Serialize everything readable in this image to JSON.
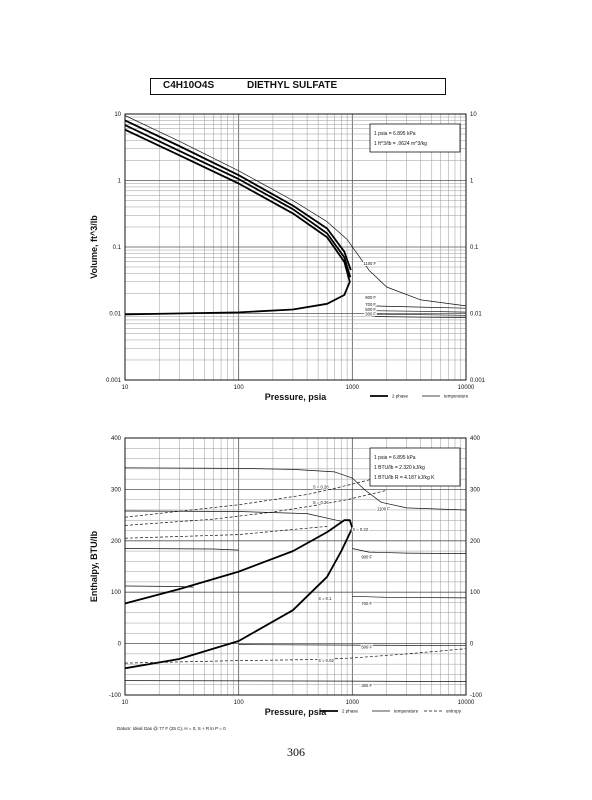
{
  "header": {
    "formula": "C4H10O4S",
    "name": "DIETHYL SULFATE"
  },
  "page_number": "306",
  "chart_data": [
    {
      "type": "line",
      "xlabel": "Pressure,  psia",
      "ylabel": "Volume,  ft^3/lb",
      "x_scale": "log",
      "y_scale": "log",
      "xlim": [
        10,
        10000
      ],
      "ylim": [
        0.001,
        10
      ],
      "x_ticks": [
        "10",
        "100",
        "1000",
        "10000"
      ],
      "y_ticks": [
        "10",
        "1",
        "0.1",
        "0.01",
        "0.001"
      ],
      "y_ticks_right": [
        "10",
        "1",
        "0.1",
        "0.01",
        "0.001"
      ],
      "grid": true,
      "conversion_box": [
        "1 psia  =  6.895 kPa",
        "1 ft^3/lb  =  .0624 m^3/kg"
      ],
      "legend": {
        "position": "bottom-right",
        "entries": [
          "2 phase",
          "temperature"
        ]
      },
      "series": [
        {
          "style": "2 phase",
          "points": [
            [
              10,
              5.8
            ],
            [
              30,
              2.4
            ],
            [
              100,
              0.9
            ],
            [
              300,
              0.32
            ],
            [
              600,
              0.14
            ],
            [
              850,
              0.06
            ],
            [
              950,
              0.03
            ],
            [
              850,
              0.019
            ],
            [
              600,
              0.014
            ],
            [
              300,
              0.0115
            ],
            [
              100,
              0.0104
            ],
            [
              10,
              0.0097
            ]
          ]
        },
        {
          "style": "2 phase",
          "points": [
            [
              10,
              6.8
            ],
            [
              30,
              2.8
            ],
            [
              100,
              1.05
            ],
            [
              300,
              0.37
            ],
            [
              600,
              0.16
            ],
            [
              850,
              0.07
            ],
            [
              960,
              0.035
            ]
          ]
        },
        {
          "style": "2 phase",
          "points": [
            [
              10,
              8.0
            ],
            [
              30,
              3.3
            ],
            [
              100,
              1.2
            ],
            [
              300,
              0.42
            ],
            [
              600,
              0.19
            ],
            [
              850,
              0.085
            ],
            [
              970,
              0.045
            ]
          ]
        },
        {
          "style": "temperature",
          "points": [
            [
              10,
              9.5
            ],
            [
              30,
              3.9
            ],
            [
              100,
              1.4
            ],
            [
              300,
              0.5
            ],
            [
              600,
              0.24
            ],
            [
              900,
              0.13
            ],
            [
              1100,
              0.08
            ],
            [
              1400,
              0.045
            ],
            [
              2000,
              0.025
            ],
            [
              4000,
              0.016
            ],
            [
              10000,
              0.013
            ]
          ]
        },
        {
          "style": "temperature",
          "points": [
            [
              1500,
              0.013
            ],
            [
              4000,
              0.0125
            ],
            [
              10000,
              0.012
            ]
          ]
        },
        {
          "style": "temperature",
          "points": [
            [
              1500,
              0.011
            ],
            [
              4000,
              0.0108
            ],
            [
              10000,
              0.0105
            ]
          ]
        },
        {
          "style": "temperature",
          "points": [
            [
              1500,
              0.0098
            ],
            [
              4000,
              0.0096
            ],
            [
              10000,
              0.0094
            ]
          ]
        },
        {
          "style": "temperature",
          "points": [
            [
              1500,
              0.009
            ],
            [
              4000,
              0.0088
            ],
            [
              10000,
              0.0087
            ]
          ]
        }
      ],
      "annotations": [
        {
          "text": "1100 F",
          "x": 1250,
          "y": 0.056
        },
        {
          "text": "900 F",
          "x": 1300,
          "y": 0.0175
        },
        {
          "text": "700 F",
          "x": 1300,
          "y": 0.0137
        },
        {
          "text": "500 F",
          "x": 1300,
          "y": 0.0115
        },
        {
          "text": "300 F",
          "x": 1300,
          "y": 0.0098
        }
      ]
    },
    {
      "type": "line",
      "xlabel": "Pressure,  psia",
      "ylabel": "Enthalpy,  BTU/lb",
      "x_scale": "log",
      "xlim": [
        10,
        10000
      ],
      "ylim": [
        -100,
        400
      ],
      "x_ticks": [
        "10",
        "100",
        "1000",
        "10000"
      ],
      "y_ticks": [
        "400",
        "300",
        "200",
        "100",
        "0",
        "-100"
      ],
      "y_ticks_right": [
        "400",
        "300",
        "200",
        "100",
        "0",
        "-100"
      ],
      "grid": true,
      "conversion_box": [
        "1 psia  =  6.895 kPa",
        "1 BTU/lb  =  2.320 kJ/kg",
        "1 BTU/lb R  =  4.187 kJ/kg K"
      ],
      "footnote": "Datum: Ideal Gas @ 77 F (25 C),  H = 0,  S + R ln P = 0",
      "legend": {
        "position": "bottom-right",
        "entries": [
          "2 phase",
          "temperature",
          "entropy"
        ]
      },
      "series": [
        {
          "style": "2 phase",
          "points": [
            [
              10,
              78
            ],
            [
              30,
              106
            ],
            [
              100,
              140
            ],
            [
              300,
              180
            ],
            [
              600,
              217
            ],
            [
              850,
              240
            ],
            [
              950,
              240
            ],
            [
              1000,
              225
            ],
            [
              800,
              180
            ],
            [
              600,
              130
            ],
            [
              300,
              65
            ],
            [
              100,
              5
            ],
            [
              30,
              -30
            ],
            [
              10,
              -48
            ]
          ]
        },
        {
          "style": "temperature",
          "points": [
            [
              10,
              342
            ],
            [
              100,
              341
            ],
            [
              300,
              339
            ],
            [
              700,
              334
            ],
            [
              1000,
              322
            ],
            [
              1300,
              298
            ],
            [
              1800,
              275
            ],
            [
              3000,
              264
            ],
            [
              10000,
              260
            ]
          ]
        },
        {
          "style": "temperature",
          "points": [
            [
              10,
              258
            ],
            [
              100,
              257
            ],
            [
              400,
              253
            ],
            [
              800,
              238
            ]
          ]
        },
        {
          "style": "temperature",
          "points": [
            [
              1000,
              185
            ],
            [
              1400,
              178
            ],
            [
              3000,
              176
            ],
            [
              10000,
              175
            ]
          ]
        },
        {
          "style": "temperature",
          "points": [
            [
              1000,
              92
            ],
            [
              2000,
              90
            ],
            [
              10000,
              89
            ]
          ]
        },
        {
          "style": "temperature",
          "points": [
            [
              10,
              185
            ],
            [
              60,
              184
            ],
            [
              100,
              182
            ]
          ]
        },
        {
          "style": "temperature",
          "points": [
            [
              10,
              112
            ],
            [
              30,
              111
            ],
            [
              40,
              110
            ]
          ]
        },
        {
          "style": "temperature",
          "points": [
            [
              100,
              -2
            ],
            [
              1000,
              -3
            ],
            [
              10000,
              -4
            ]
          ]
        },
        {
          "style": "temperature",
          "points": [
            [
              10,
              -72
            ],
            [
              1000,
              -73
            ],
            [
              10000,
              -74
            ]
          ]
        },
        {
          "style": "entropy",
          "points": [
            [
              10,
              246
            ],
            [
              100,
              270
            ],
            [
              400,
              290
            ],
            [
              700,
              302
            ],
            [
              1500,
              320
            ],
            [
              3000,
              345
            ],
            [
              8000,
              370
            ]
          ]
        },
        {
          "style": "entropy",
          "points": [
            [
              10,
              230
            ],
            [
              60,
              242
            ],
            [
              200,
              256
            ],
            [
              450,
              268
            ],
            [
              900,
              280
            ],
            [
              2000,
              298
            ]
          ]
        },
        {
          "style": "entropy",
          "points": [
            [
              10,
              -38
            ],
            [
              100,
              -33
            ],
            [
              500,
              -31
            ],
            [
              1000,
              -28
            ],
            [
              3000,
              -20
            ],
            [
              10000,
              -10
            ]
          ]
        },
        {
          "style": "entropy",
          "points": [
            [
              10,
              205
            ],
            [
              100,
              212
            ],
            [
              300,
              222
            ],
            [
              600,
              228
            ]
          ]
        }
      ],
      "annotations": [
        {
          "text": "S = 0.28",
          "x": 450,
          "y": 305
        },
        {
          "text": "S = 0.26",
          "x": 450,
          "y": 275
        },
        {
          "text": "S = 0.22",
          "x": 1000,
          "y": 222
        },
        {
          "text": "1100 F",
          "x": 1650,
          "y": 262
        },
        {
          "text": "900 F",
          "x": 1200,
          "y": 168
        },
        {
          "text": "700 F",
          "x": 1200,
          "y": 78
        },
        {
          "text": "S = 0.1",
          "x": 500,
          "y": 88
        },
        {
          "text": "500 F",
          "x": 1200,
          "y": -7
        },
        {
          "text": "S = 0.02",
          "x": 500,
          "y": -33
        },
        {
          "text": "300 F",
          "x": 1200,
          "y": -82
        }
      ]
    }
  ]
}
